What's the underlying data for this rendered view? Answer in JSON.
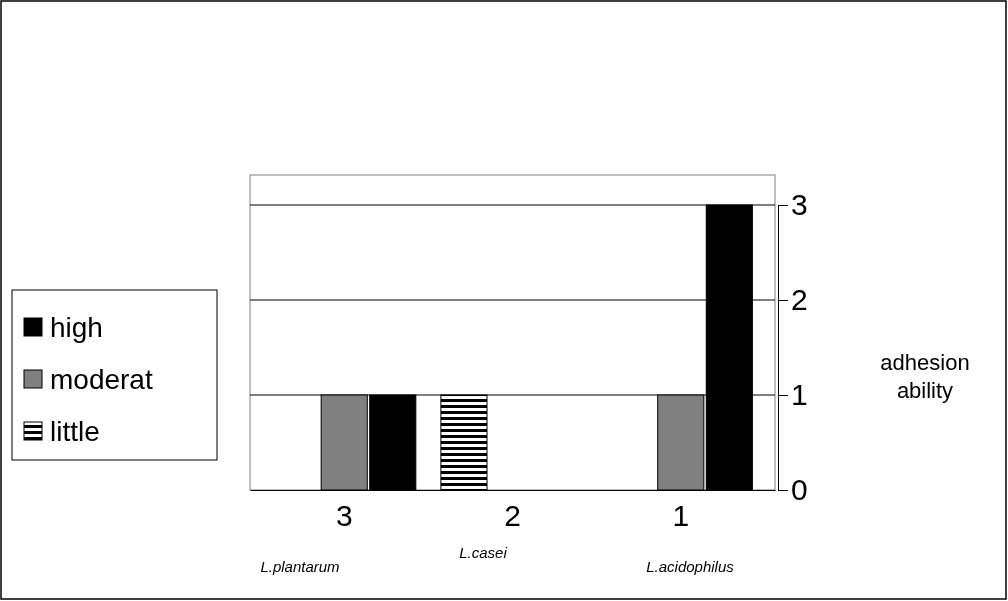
{
  "chart_data": {
    "type": "bar",
    "categories": [
      "3",
      "2",
      "1"
    ],
    "series": [
      {
        "name": "little",
        "color": "#000000",
        "values": [
          0,
          1,
          0
        ]
      },
      {
        "name": "moderat",
        "color": "#808080",
        "values": [
          1,
          0,
          1
        ]
      },
      {
        "name": "high",
        "color": "#000000",
        "values": [
          1,
          0,
          3
        ]
      }
    ],
    "ylabel": "adhesion ability",
    "ylim": [
      0,
      3
    ],
    "yticks": [
      0,
      1,
      2,
      3
    ],
    "grid": "y",
    "legend": "left",
    "annotations": [
      "L.plantarum",
      "L.casei",
      "L.acidophilus"
    ]
  }
}
